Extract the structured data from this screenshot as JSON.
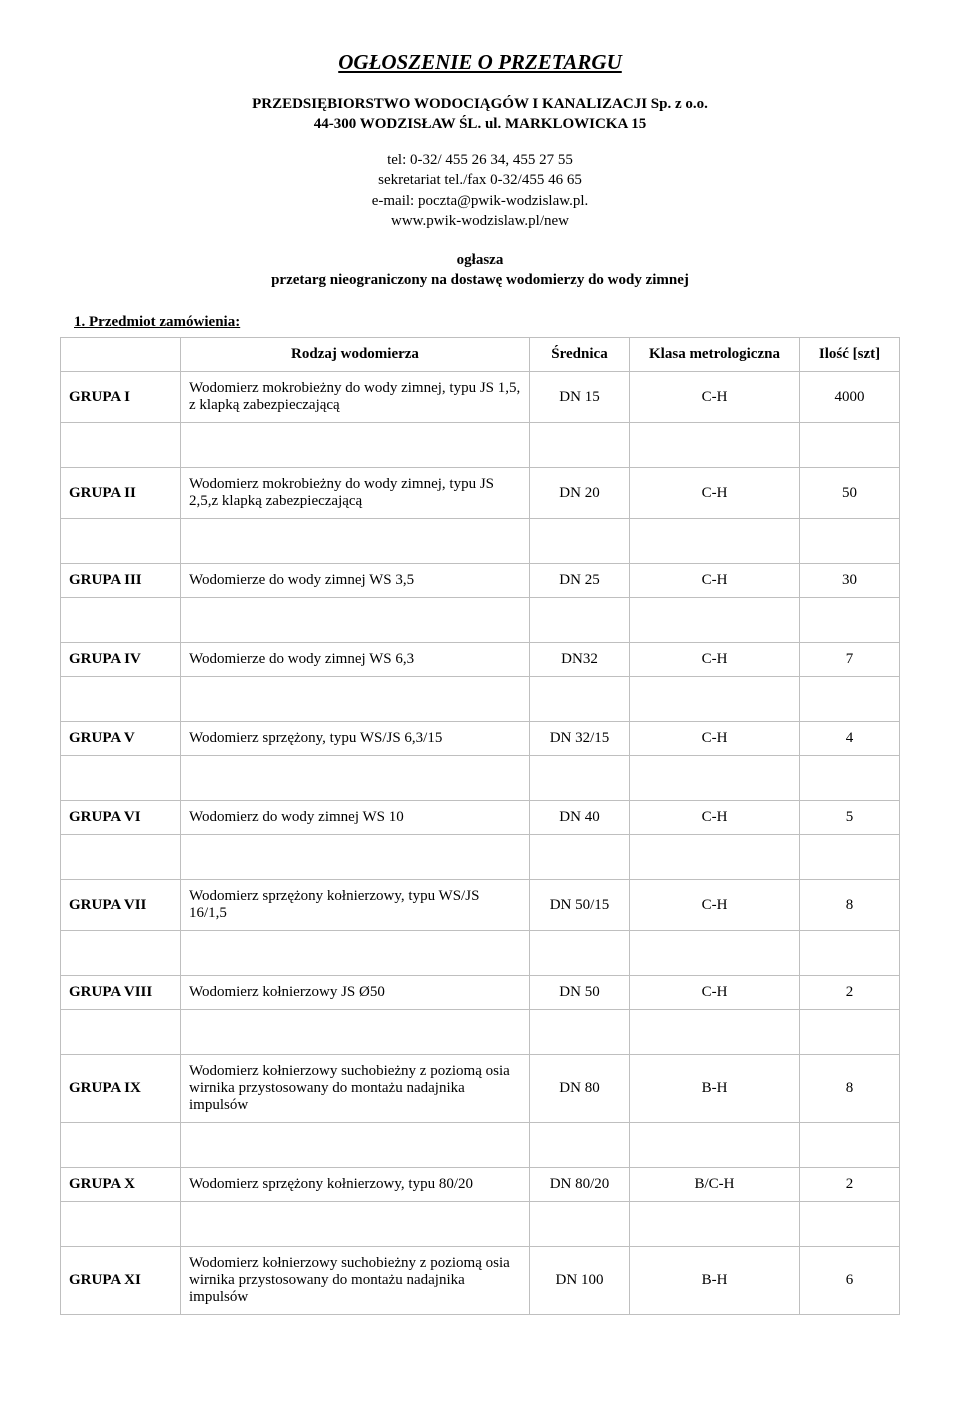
{
  "title": "OGŁOSZENIE O PRZETARGU",
  "org_line1": "PRZEDSIĘBIORSTWO WODOCIĄGÓW I KANALIZACJI Sp. z o.o.",
  "org_line2": "44-300 WODZISŁAW ŚL. ul. MARKLOWICKA 15",
  "contact_tel": "tel: 0-32/ 455 26 34, 455 27 55",
  "contact_sekr": "sekretariat tel./fax 0-32/455 46 65",
  "contact_email": "e-mail: poczta@pwik-wodzislaw.pl.",
  "contact_www": "www.pwik-wodzislaw.pl/new",
  "announce_line1": "ogłasza",
  "announce_line2": "przetarg nieograniczony na dostawę wodomierzy do wody zimnej",
  "section_heading": "1.  Przedmiot zamówienia:",
  "table": {
    "headers": {
      "group_blank": "",
      "type": "Rodzaj wodomierza",
      "diameter": "Średnica",
      "class": "Klasa metrologiczna",
      "qty": "Ilość [szt]"
    },
    "rows": [
      {
        "group": "GRUPA  I",
        "desc": "Wodomierz mokrobieżny do wody zimnej, typu JS 1,5, z klapką zabezpieczającą",
        "dia": "DN 15",
        "class": "C-H",
        "qty": "4000"
      },
      {
        "group": "GRUPA  II",
        "desc": "Wodomierz mokrobieżny do wody zimnej, typu JS 2,5,z klapką zabezpieczającą",
        "dia": "DN 20",
        "class": "C-H",
        "qty": "50"
      },
      {
        "group": "GRUPA III",
        "desc": "Wodomierze do wody zimnej WS 3,5",
        "dia": "DN 25",
        "class": "C-H",
        "qty": "30"
      },
      {
        "group": "GRUPA IV",
        "desc": "Wodomierze do wody zimnej WS 6,3",
        "dia": "DN32",
        "class": "C-H",
        "qty": "7"
      },
      {
        "group": "GRUPA V",
        "desc": "Wodomierz sprzężony, typu WS/JS 6,3/15",
        "dia": "DN 32/15",
        "class": "C-H",
        "qty": "4"
      },
      {
        "group": "GRUPA VI",
        "desc": "Wodomierz do wody zimnej WS 10",
        "dia": "DN 40",
        "class": "C-H",
        "qty": "5"
      },
      {
        "group": "GRUPA VII",
        "desc": "Wodomierz sprzężony kołnierzowy, typu WS/JS 16/1,5",
        "dia": "DN 50/15",
        "class": "C-H",
        "qty": "8"
      },
      {
        "group": "GRUPA VIII",
        "desc": "Wodomierz  kołnierzowy JS Ø50",
        "dia": "DN 50",
        "class": "C-H",
        "qty": "2"
      },
      {
        "group": "GRUPA IX",
        "desc": "Wodomierz kołnierzowy suchobieżny  z poziomą osia wirnika przystosowany do montażu nadajnika impulsów",
        "dia": "DN 80",
        "class": "B-H",
        "qty": "8"
      },
      {
        "group": "GRUPA X",
        "desc": "Wodomierz sprzężony kołnierzowy, typu 80/20",
        "dia": "DN 80/20",
        "class": "B/C-H",
        "qty": "2"
      },
      {
        "group": "GRUPA XI",
        "desc": "Wodomierz kołnierzowy suchobieżny  z poziomą osia wirnika przystosowany do montażu nadajnika impulsów",
        "dia": "DN 100",
        "class": "B-H",
        "qty": "6"
      }
    ]
  }
}
